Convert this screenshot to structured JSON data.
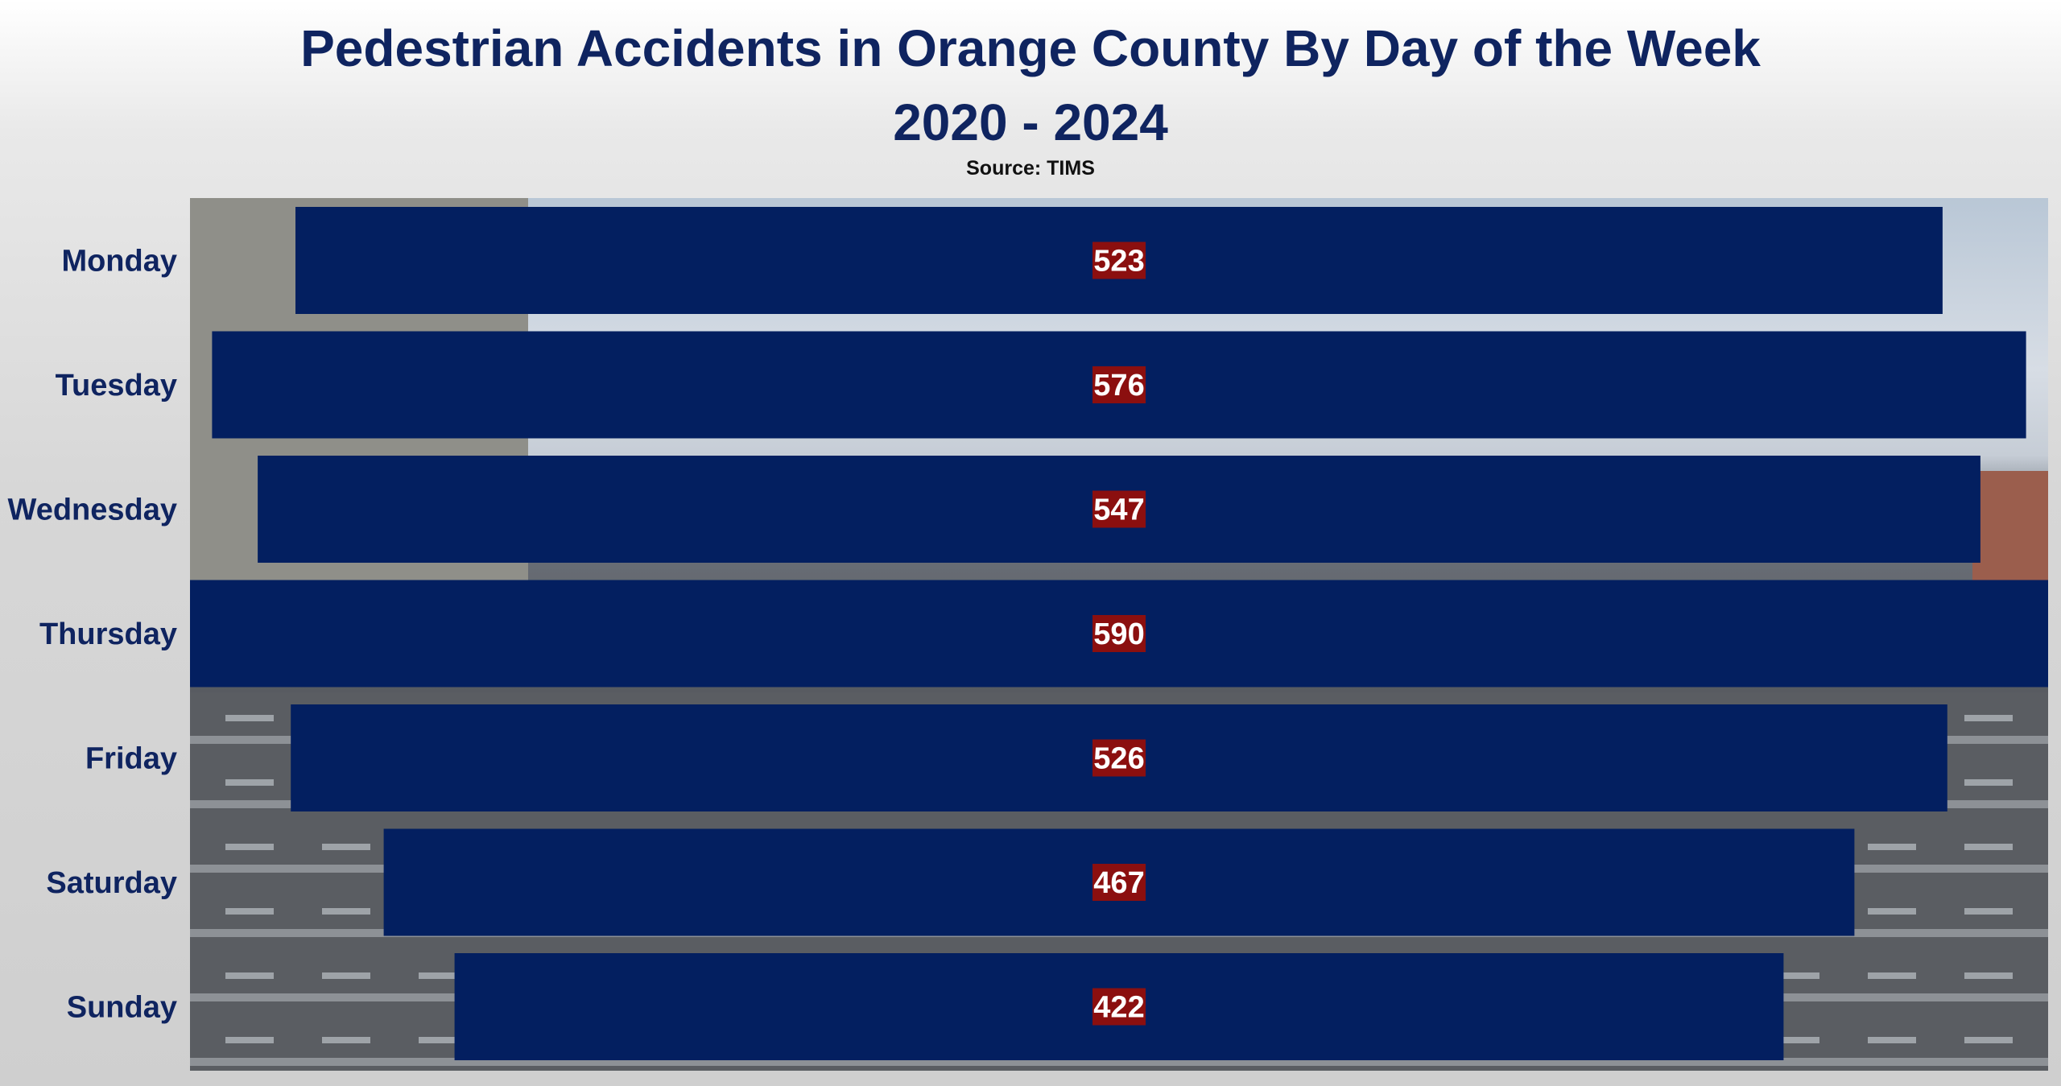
{
  "title": {
    "line1": "Pedestrian Accidents in Orange County By Day of the Week",
    "line2": "2020 - 2024",
    "source": "Source: TIMS"
  },
  "colors": {
    "bar": "#031f60",
    "label_box": "#8b0f0f",
    "label_text": "#ffffff",
    "category_text": "#0f2460",
    "title_text": "#0f2460"
  },
  "chart_data": {
    "type": "bar",
    "orientation": "horizontal",
    "title": "Pedestrian Accidents in Orange County By Day of the Week",
    "subtitle": "2020 - 2024",
    "source": "Source: TIMS",
    "categories": [
      "Monday",
      "Tuesday",
      "Wednesday",
      "Thursday",
      "Friday",
      "Saturday",
      "Sunday"
    ],
    "values": [
      523,
      576,
      547,
      590,
      526,
      467,
      422
    ],
    "xlabel": "",
    "ylabel": "",
    "xlim": [
      0,
      590
    ],
    "grid": false,
    "legend": "none"
  }
}
